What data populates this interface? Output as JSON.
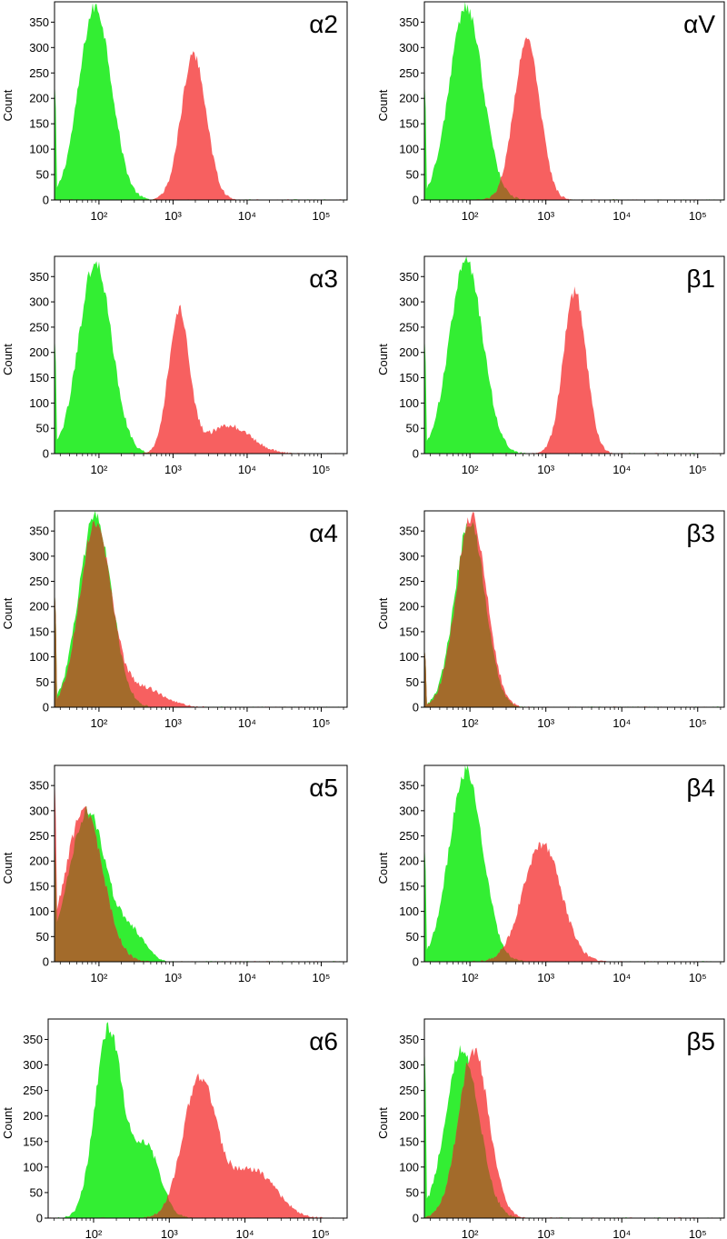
{
  "colors": {
    "series_green": "#33ee33",
    "series_red": "#f76060",
    "overlap": "#a36b2b",
    "axis": "#000000"
  },
  "chart_data": [
    {
      "type": "area",
      "panel_label": "α2",
      "ylabel": "Count",
      "yticks": [
        "0",
        "50",
        "100",
        "150",
        "200",
        "250",
        "300",
        "350"
      ],
      "xticks": [
        "10²",
        "10³",
        "10⁴",
        "10⁵"
      ],
      "ylim": [
        0,
        390
      ],
      "xlim_log10": [
        1.4,
        5.35
      ],
      "series": [
        {
          "color": "green",
          "peaks": [
            {
              "log10_center": 1.95,
              "sigma": 0.22,
              "height": 380
            }
          ],
          "spike_at_min": 240
        },
        {
          "color": "red",
          "peaks": [
            {
              "log10_center": 3.28,
              "sigma": 0.17,
              "height": 285
            }
          ],
          "spike_at_min": 0
        }
      ]
    },
    {
      "type": "area",
      "panel_label": "αV",
      "ylabel": "Count",
      "yticks": [
        "0",
        "50",
        "100",
        "150",
        "200",
        "250",
        "300",
        "350"
      ],
      "xticks": [
        "10²",
        "10³",
        "10⁴",
        "10⁵"
      ],
      "ylim": [
        0,
        390
      ],
      "xlim_log10": [
        1.4,
        5.35
      ],
      "series": [
        {
          "color": "green",
          "peaks": [
            {
              "log10_center": 1.95,
              "sigma": 0.22,
              "height": 380
            }
          ],
          "spike_at_min": 240
        },
        {
          "color": "red",
          "peaks": [
            {
              "log10_center": 2.75,
              "sigma": 0.17,
              "height": 315
            }
          ],
          "spike_at_min": 0
        }
      ]
    },
    {
      "type": "area",
      "panel_label": "α3",
      "ylabel": "Count",
      "yticks": [
        "0",
        "50",
        "100",
        "150",
        "200",
        "250",
        "300",
        "350"
      ],
      "xticks": [
        "10²",
        "10³",
        "10⁴",
        "10⁵"
      ],
      "ylim": [
        0,
        390
      ],
      "xlim_log10": [
        1.4,
        5.35
      ],
      "series": [
        {
          "color": "green",
          "peaks": [
            {
              "log10_center": 1.95,
              "sigma": 0.22,
              "height": 380
            }
          ],
          "spike_at_min": 240
        },
        {
          "color": "red",
          "peaks": [
            {
              "log10_center": 3.08,
              "sigma": 0.14,
              "height": 280
            },
            {
              "log10_center": 3.75,
              "sigma": 0.3,
              "height": 55
            }
          ],
          "spike_at_min": 0
        }
      ]
    },
    {
      "type": "area",
      "panel_label": "β1",
      "ylabel": "Count",
      "yticks": [
        "0",
        "50",
        "100",
        "150",
        "200",
        "250",
        "300",
        "350"
      ],
      "xticks": [
        "10²",
        "10³",
        "10⁴",
        "10⁵"
      ],
      "ylim": [
        0,
        390
      ],
      "xlim_log10": [
        1.4,
        5.35
      ],
      "series": [
        {
          "color": "green",
          "peaks": [
            {
              "log10_center": 1.95,
              "sigma": 0.22,
              "height": 380
            }
          ],
          "spike_at_min": 240
        },
        {
          "color": "red",
          "peaks": [
            {
              "log10_center": 3.38,
              "sigma": 0.15,
              "height": 320
            }
          ],
          "spike_at_min": 0
        }
      ]
    },
    {
      "type": "area",
      "panel_label": "α4",
      "ylabel": "Count",
      "yticks": [
        "0",
        "50",
        "100",
        "150",
        "200",
        "250",
        "300",
        "350"
      ],
      "xticks": [
        "10²",
        "10³",
        "10⁴",
        "10⁵"
      ],
      "ylim": [
        0,
        390
      ],
      "xlim_log10": [
        1.4,
        5.35
      ],
      "series": [
        {
          "color": "green",
          "peaks": [
            {
              "log10_center": 1.95,
              "sigma": 0.22,
              "height": 380
            }
          ],
          "spike_at_min": 240
        },
        {
          "color": "red",
          "peaks": [
            {
              "log10_center": 1.95,
              "sigma": 0.21,
              "height": 365
            },
            {
              "log10_center": 2.55,
              "sigma": 0.3,
              "height": 40
            }
          ],
          "spike_at_min": 240
        }
      ]
    },
    {
      "type": "area",
      "panel_label": "β3",
      "ylabel": "Count",
      "yticks": [
        "0",
        "50",
        "100",
        "150",
        "200",
        "250",
        "300",
        "350"
      ],
      "xticks": [
        "10²",
        "10³",
        "10⁴",
        "10⁵"
      ],
      "ylim": [
        0,
        390
      ],
      "xlim_log10": [
        1.4,
        5.35
      ],
      "series": [
        {
          "color": "green",
          "peaks": [
            {
              "log10_center": 2.0,
              "sigma": 0.2,
              "height": 370
            }
          ],
          "spike_at_min": 120
        },
        {
          "color": "red",
          "peaks": [
            {
              "log10_center": 2.02,
              "sigma": 0.2,
              "height": 380
            }
          ],
          "spike_at_min": 120
        }
      ]
    },
    {
      "type": "area",
      "panel_label": "α5",
      "ylabel": "Count",
      "yticks": [
        "0",
        "50",
        "100",
        "150",
        "200",
        "250",
        "300",
        "350"
      ],
      "xticks": [
        "10²",
        "10³",
        "10⁴",
        "10⁵"
      ],
      "ylim": [
        0,
        390
      ],
      "xlim_log10": [
        1.4,
        5.35
      ],
      "series": [
        {
          "color": "green",
          "peaks": [
            {
              "log10_center": 1.85,
              "sigma": 0.25,
              "height": 300
            },
            {
              "log10_center": 2.45,
              "sigma": 0.18,
              "height": 55
            }
          ],
          "spike_at_min": 250
        },
        {
          "color": "red",
          "peaks": [
            {
              "log10_center": 1.8,
              "sigma": 0.25,
              "height": 300
            }
          ],
          "spike_at_min": 380
        }
      ]
    },
    {
      "type": "area",
      "panel_label": "β4",
      "ylabel": "Count",
      "yticks": [
        "0",
        "50",
        "100",
        "150",
        "200",
        "250",
        "300",
        "350"
      ],
      "xticks": [
        "10²",
        "10³",
        "10⁴",
        "10⁵"
      ],
      "ylim": [
        0,
        390
      ],
      "xlim_log10": [
        1.4,
        5.35
      ],
      "series": [
        {
          "color": "green",
          "peaks": [
            {
              "log10_center": 1.95,
              "sigma": 0.22,
              "height": 380
            }
          ],
          "spike_at_min": 240
        },
        {
          "color": "red",
          "peaks": [
            {
              "log10_center": 2.95,
              "sigma": 0.25,
              "height": 235
            }
          ],
          "spike_at_min": 0
        }
      ]
    },
    {
      "type": "area",
      "panel_label": "α6",
      "ylabel": "Count",
      "yticks": [
        "0",
        "50",
        "100",
        "150",
        "200",
        "250",
        "300",
        "350"
      ],
      "xticks": [
        "10²",
        "10³",
        "10⁴",
        "10⁵"
      ],
      "ylim": [
        0,
        390
      ],
      "xlim_log10": [
        1.4,
        5.35
      ],
      "series": [
        {
          "color": "green",
          "peaks": [
            {
              "log10_center": 2.2,
              "sigma": 0.18,
              "height": 370
            },
            {
              "log10_center": 2.7,
              "sigma": 0.18,
              "height": 140
            }
          ],
          "spike_at_min": 0
        },
        {
          "color": "red",
          "peaks": [
            {
              "log10_center": 3.4,
              "sigma": 0.22,
              "height": 270
            },
            {
              "log10_center": 4.1,
              "sigma": 0.3,
              "height": 95
            }
          ],
          "spike_at_min": 0
        }
      ]
    },
    {
      "type": "area",
      "panel_label": "β5",
      "ylabel": "Count",
      "yticks": [
        "0",
        "50",
        "100",
        "150",
        "200",
        "250",
        "300",
        "350"
      ],
      "xticks": [
        "10²",
        "10³",
        "10⁴",
        "10⁵"
      ],
      "ylim": [
        0,
        390
      ],
      "xlim_log10": [
        1.4,
        5.35
      ],
      "series": [
        {
          "color": "green",
          "peaks": [
            {
              "log10_center": 1.9,
              "sigma": 0.22,
              "height": 330
            }
          ],
          "spike_at_min": 350
        },
        {
          "color": "red",
          "peaks": [
            {
              "log10_center": 2.05,
              "sigma": 0.2,
              "height": 330
            }
          ],
          "spike_at_min": 0
        }
      ]
    }
  ]
}
